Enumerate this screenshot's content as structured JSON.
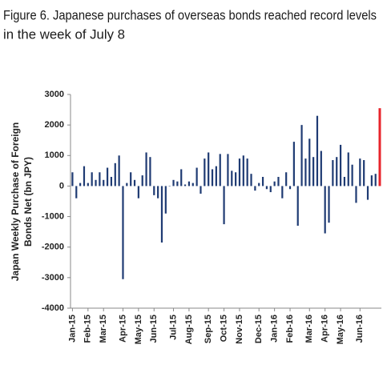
{
  "chart_data": {
    "type": "bar",
    "title": [
      "Figure 6. Japanese purchases of overseas bonds reached record levels",
      "in the week of July 8"
    ],
    "ylabel": [
      "Japan Weekly Purchase of Foreign",
      "Bonds Net (bn JPY)"
    ],
    "categories": [
      "Jan-15",
      null,
      null,
      null,
      "Feb-15",
      null,
      null,
      null,
      "Mar-15",
      null,
      null,
      null,
      null,
      "Apr-15",
      null,
      null,
      null,
      "May-15",
      null,
      null,
      null,
      "Jun-15",
      null,
      null,
      null,
      null,
      "Jul-15",
      null,
      null,
      null,
      "Aug-15",
      null,
      null,
      null,
      null,
      "Sep-15",
      null,
      null,
      null,
      "Oct-15",
      null,
      null,
      null,
      "Nov-15",
      null,
      null,
      null,
      null,
      "Dec-15",
      null,
      null,
      null,
      "Jan-16",
      null,
      null,
      null,
      "Feb-16",
      null,
      null,
      null,
      null,
      "Mar-16",
      null,
      null,
      null,
      "Apr-16",
      null,
      null,
      null,
      "May-16",
      null,
      null,
      null,
      null,
      "Jun-16",
      null,
      null,
      null,
      null,
      null
    ],
    "values": [
      450,
      -400,
      100,
      650,
      100,
      450,
      200,
      450,
      200,
      600,
      300,
      750,
      1000,
      -3050,
      100,
      450,
      200,
      -400,
      350,
      1100,
      950,
      -300,
      -400,
      -1850,
      -900,
      0,
      200,
      150,
      550,
      50,
      150,
      100,
      600,
      -250,
      900,
      1100,
      550,
      650,
      1050,
      -1250,
      1050,
      500,
      450,
      900,
      1000,
      900,
      400,
      -150,
      100,
      300,
      -100,
      -200,
      150,
      300,
      -400,
      450,
      -100,
      1450,
      -1300,
      2000,
      900,
      1550,
      950,
      2300,
      1150,
      -1550,
      -1200,
      850,
      950,
      1350,
      300,
      1100,
      700,
      -550,
      900,
      850,
      -450,
      350,
      400,
      2550
    ],
    "colors": [
      "#1f3b73",
      "#1f3b73",
      "#1f3b73",
      "#1f3b73",
      "#1f3b73",
      "#1f3b73",
      "#1f3b73",
      "#1f3b73",
      "#1f3b73",
      "#1f3b73",
      "#1f3b73",
      "#1f3b73",
      "#1f3b73",
      "#1f3b73",
      "#1f3b73",
      "#1f3b73",
      "#1f3b73",
      "#1f3b73",
      "#1f3b73",
      "#1f3b73",
      "#1f3b73",
      "#1f3b73",
      "#1f3b73",
      "#1f3b73",
      "#1f3b73",
      "#1f3b73",
      "#1f3b73",
      "#1f3b73",
      "#1f3b73",
      "#1f3b73",
      "#1f3b73",
      "#1f3b73",
      "#1f3b73",
      "#1f3b73",
      "#1f3b73",
      "#1f3b73",
      "#1f3b73",
      "#1f3b73",
      "#1f3b73",
      "#1f3b73",
      "#1f3b73",
      "#1f3b73",
      "#1f3b73",
      "#1f3b73",
      "#1f3b73",
      "#1f3b73",
      "#1f3b73",
      "#1f3b73",
      "#1f3b73",
      "#1f3b73",
      "#1f3b73",
      "#1f3b73",
      "#1f3b73",
      "#1f3b73",
      "#1f3b73",
      "#1f3b73",
      "#1f3b73",
      "#1f3b73",
      "#1f3b73",
      "#1f3b73",
      "#1f3b73",
      "#1f3b73",
      "#1f3b73",
      "#1f3b73",
      "#1f3b73",
      "#1f3b73",
      "#1f3b73",
      "#1f3b73",
      "#1f3b73",
      "#1f3b73",
      "#1f3b73",
      "#1f3b73",
      "#1f3b73",
      "#1f3b73",
      "#1f3b73",
      "#1f3b73",
      "#1f3b73",
      "#1f3b73",
      "#1f3b73",
      "#e8242b"
    ],
    "ylim": [
      -4000,
      3000
    ],
    "yticks": [
      3000,
      2000,
      1000,
      0,
      -1000,
      -2000,
      -3000,
      -4000
    ],
    "grid": false
  }
}
